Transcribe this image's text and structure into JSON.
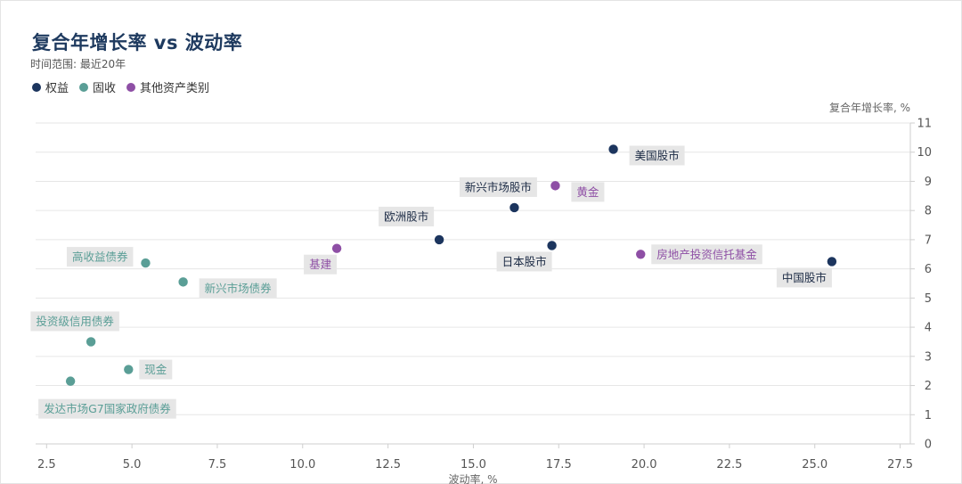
{
  "header": {
    "title": "复合年增长率 vs 波动率",
    "subtitle": "时间范围: 最近20年"
  },
  "legend": [
    {
      "label": "权益",
      "color": "#1c355e"
    },
    {
      "label": "固收",
      "color": "#5a9e96"
    },
    {
      "label": "其他资产类别",
      "color": "#8e4fa5"
    }
  ],
  "chart_data": {
    "type": "scatter",
    "xlabel": "波动率, %",
    "ylabel": "复合年增长率, %",
    "xlim": [
      2.0,
      28.0
    ],
    "ylim": [
      0,
      11
    ],
    "xticks": [
      2.5,
      5.0,
      7.5,
      10.0,
      12.5,
      15.0,
      17.5,
      20.0,
      22.5,
      25.0,
      27.5
    ],
    "xtick_labels": [
      "2.5",
      "5.0",
      "7.5",
      "10.0",
      "12.5",
      "15.0",
      "17.5",
      "20.0",
      "22.5",
      "25.0",
      "27.5"
    ],
    "yticks": [
      0,
      1,
      2,
      3,
      4,
      5,
      6,
      7,
      8,
      9,
      10,
      11
    ],
    "grid": true,
    "series": [
      {
        "name": "权益",
        "color": "#1c355e",
        "points": [
          {
            "label": "美国股市",
            "x": 19.1,
            "y": 10.1,
            "pos": "right-below"
          },
          {
            "label": "新兴市场股市",
            "x": 16.2,
            "y": 8.1,
            "pos": "above"
          },
          {
            "label": "欧洲股市",
            "x": 14.0,
            "y": 7.0,
            "pos": "left-above"
          },
          {
            "label": "日本股市",
            "x": 17.3,
            "y": 6.8,
            "pos": "left-below"
          },
          {
            "label": "中国股市",
            "x": 25.5,
            "y": 6.25,
            "pos": "left-below"
          }
        ]
      },
      {
        "name": "固收",
        "color": "#5a9e96",
        "points": [
          {
            "label": "高收益债券",
            "x": 5.4,
            "y": 6.2,
            "pos": "left"
          },
          {
            "label": "新兴市场债券",
            "x": 6.5,
            "y": 5.55,
            "pos": "right-below"
          },
          {
            "label": "投资级信用债券",
            "x": 3.8,
            "y": 3.5,
            "pos": "above"
          },
          {
            "label": "现金",
            "x": 4.9,
            "y": 2.55,
            "pos": "right"
          },
          {
            "label": "发达市场G7国家政府债券",
            "x": 3.2,
            "y": 2.15,
            "pos": "right-below-far"
          }
        ]
      },
      {
        "name": "其他资产类别",
        "color": "#8e4fa5",
        "points": [
          {
            "label": "黄金",
            "x": 17.4,
            "y": 8.85,
            "pos": "right-below"
          },
          {
            "label": "基建",
            "x": 11.0,
            "y": 6.7,
            "pos": "left-below"
          },
          {
            "label": "房地产投资信托基金",
            "x": 19.9,
            "y": 6.5,
            "pos": "right"
          }
        ]
      }
    ]
  }
}
